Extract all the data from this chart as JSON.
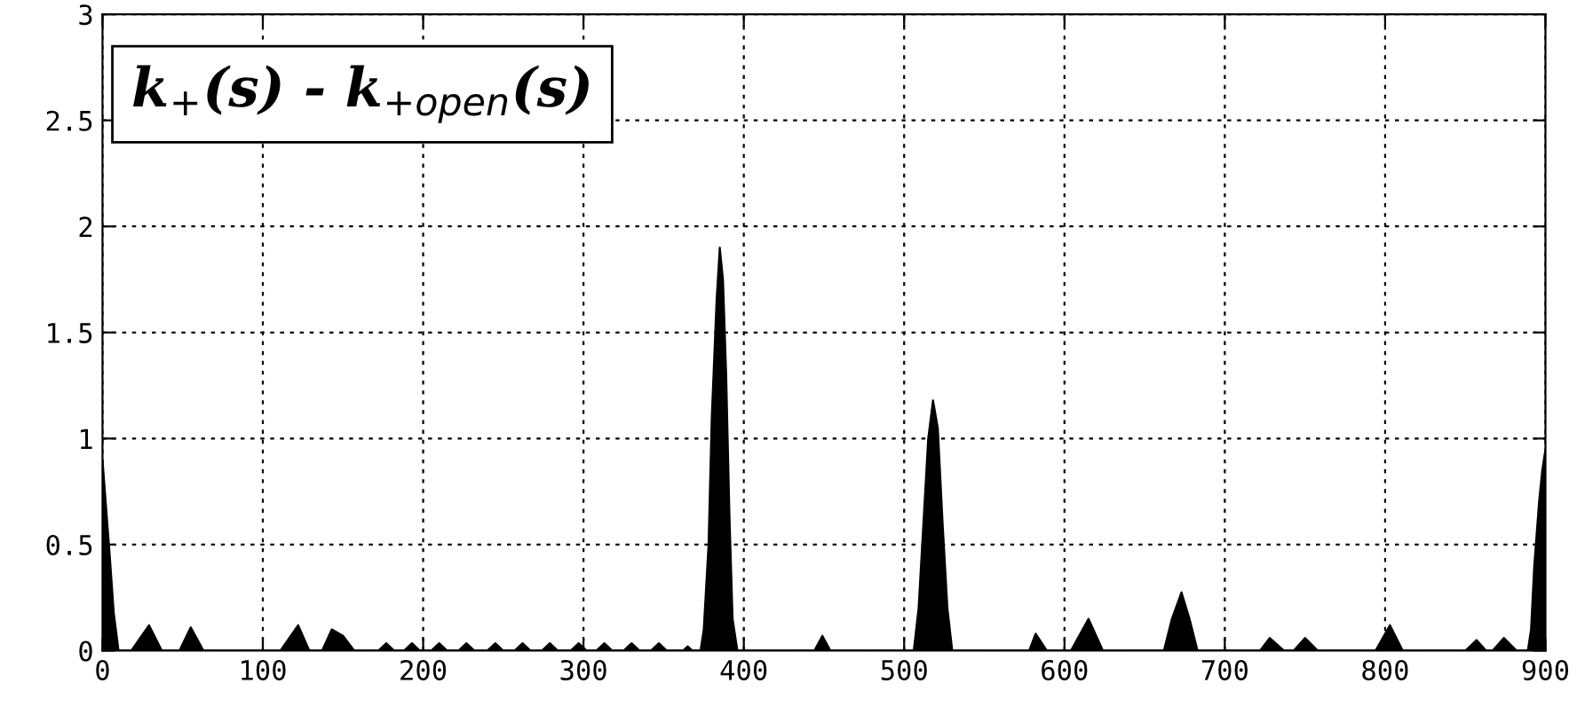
{
  "chart_data": {
    "type": "area",
    "annotations": [
      "k$_{+}$(s) - k$_{+open}$(s)"
    ],
    "series": [
      {
        "color": "#000000",
        "x": [
          0,
          2,
          4.5,
          7,
          10,
          18,
          29,
          37,
          48,
          55,
          63,
          111,
          122,
          129,
          137,
          143,
          150,
          157,
          172,
          177,
          182,
          188,
          193,
          198,
          205,
          210,
          215,
          222,
          227,
          232,
          240,
          245,
          250,
          257,
          262,
          267,
          274,
          279,
          284,
          292,
          297,
          302,
          308,
          313,
          318,
          325,
          330,
          335,
          342,
          347,
          352,
          362,
          365,
          368,
          373,
          375,
          378,
          380,
          383,
          385,
          387,
          389,
          391,
          393,
          396,
          444,
          449,
          454,
          506,
          509,
          512,
          515,
          518,
          521,
          524,
          527,
          530,
          578,
          582,
          589,
          604,
          615,
          624,
          662,
          667,
          673,
          678,
          683,
          722,
          728,
          737,
          743,
          750,
          758,
          794,
          803,
          811,
          850,
          857,
          863,
          867,
          874,
          882,
          889,
          891,
          893,
          896,
          898,
          900
        ],
        "values": [
          0.9,
          0.7,
          0.45,
          0.18,
          0,
          0,
          0.12,
          0,
          0,
          0.11,
          0,
          0,
          0.12,
          0,
          0,
          0.1,
          0.07,
          0,
          0,
          0.035,
          0,
          0,
          0.035,
          0,
          0,
          0.035,
          0,
          0,
          0.035,
          0,
          0,
          0.035,
          0,
          0,
          0.035,
          0,
          0,
          0.035,
          0,
          0,
          0.035,
          0,
          0,
          0.035,
          0,
          0,
          0.035,
          0,
          0,
          0.035,
          0,
          0,
          0.02,
          0,
          0,
          0.1,
          0.5,
          1.1,
          1.65,
          1.9,
          1.75,
          1.3,
          0.65,
          0.15,
          0,
          0,
          0.07,
          0,
          0,
          0.2,
          0.6,
          1.0,
          1.18,
          1.05,
          0.6,
          0.2,
          0,
          0,
          0.08,
          0,
          0,
          0.15,
          0,
          0,
          0.15,
          0.275,
          0.15,
          0,
          0,
          0.06,
          0,
          0,
          0.06,
          0,
          0,
          0.12,
          0,
          0,
          0.05,
          0,
          0,
          0.06,
          0,
          0,
          0.1,
          0.4,
          0.7,
          0.85,
          0.95
        ]
      }
    ],
    "xlim": [
      0,
      900
    ],
    "ylim": [
      0,
      3
    ],
    "xticks": [
      0,
      100,
      200,
      300,
      400,
      500,
      600,
      700,
      800,
      900
    ],
    "yticks": [
      0,
      0.5,
      1,
      1.5,
      2,
      2.5,
      3
    ],
    "grid": true
  }
}
